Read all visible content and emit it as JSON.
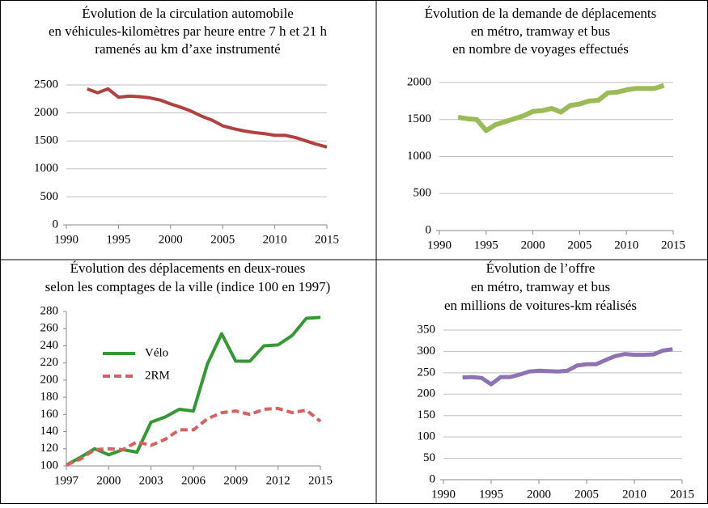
{
  "chart_data": [
    {
      "type": "line",
      "title": [
        "Évolution de la circulation automobile",
        "en véhicules-kilomètres par heure entre 7 h et 21 h",
        "ramenés au km d’axe instrumenté"
      ],
      "x": [
        1992,
        1993,
        1994,
        1995,
        1996,
        1997,
        1998,
        1999,
        2000,
        2001,
        2002,
        2003,
        2004,
        2005,
        2006,
        2007,
        2008,
        2009,
        2010,
        2011,
        2012,
        2013,
        2014,
        2015
      ],
      "series": [
        {
          "color": "#b0413e",
          "values": [
            2430,
            2360,
            2430,
            2280,
            2300,
            2290,
            2270,
            2230,
            2160,
            2100,
            2030,
            1940,
            1870,
            1770,
            1720,
            1680,
            1650,
            1630,
            1600,
            1600,
            1560,
            1500,
            1440,
            1390
          ]
        }
      ],
      "xlim": [
        1990,
        2015
      ],
      "xticks": [
        1990,
        1995,
        2000,
        2005,
        2010,
        2015
      ],
      "ylim": [
        0,
        2500
      ],
      "yticks": [
        0,
        500,
        1000,
        1500,
        2000,
        2500
      ],
      "grid": true
    },
    {
      "type": "line",
      "title": [
        "Évolution de la demande de déplacements",
        "en métro, tramway et bus",
        "en nombre de voyages effectués"
      ],
      "x": [
        1992,
        1993,
        1994,
        1995,
        1996,
        1997,
        1998,
        1999,
        2000,
        2001,
        2002,
        2003,
        2004,
        2005,
        2006,
        2007,
        2008,
        2009,
        2010,
        2011,
        2012,
        2013,
        2014
      ],
      "series": [
        {
          "color": "#9bbb59",
          "values": [
            1530,
            1510,
            1500,
            1350,
            1430,
            1470,
            1510,
            1550,
            1610,
            1620,
            1650,
            1600,
            1690,
            1710,
            1750,
            1760,
            1860,
            1870,
            1900,
            1920,
            1920,
            1920,
            1960
          ]
        }
      ],
      "xlim": [
        1990,
        2015
      ],
      "xticks": [
        1990,
        1995,
        2000,
        2005,
        2010,
        2015
      ],
      "ylim": [
        0,
        2000
      ],
      "yticks": [
        0,
        500,
        1000,
        1500,
        2000
      ],
      "grid": true
    },
    {
      "type": "line",
      "title": [
        "Évolution des déplacements en deux-roues",
        "selon les comptages de la ville (indice 100 en 1997)"
      ],
      "x": [
        1997,
        1998,
        1999,
        2000,
        2001,
        2002,
        2003,
        2004,
        2005,
        2006,
        2007,
        2008,
        2009,
        2010,
        2011,
        2012,
        2013,
        2014,
        2015
      ],
      "series": [
        {
          "name": "Vélo",
          "color": "#339933",
          "style": "solid",
          "values": [
            101,
            110,
            120,
            113,
            119,
            116,
            151,
            157,
            166,
            164,
            219,
            254,
            222,
            222,
            240,
            241,
            252,
            272,
            273
          ]
        },
        {
          "name": "2RM",
          "color": "#d9605f",
          "style": "dashed",
          "values": [
            101,
            108,
            119,
            120,
            119,
            128,
            124,
            131,
            142,
            142,
            155,
            162,
            164,
            160,
            166,
            167,
            162,
            165,
            152
          ]
        }
      ],
      "xlim": [
        1997,
        2015
      ],
      "xticks": [
        1997,
        2000,
        2003,
        2006,
        2009,
        2012,
        2015
      ],
      "ylim": [
        100,
        280
      ],
      "yticks": [
        100,
        120,
        140,
        160,
        180,
        200,
        220,
        240,
        260,
        280
      ],
      "grid": false,
      "legend": "upper-left"
    },
    {
      "type": "line",
      "title": [
        "Évolution de l’offre",
        "en métro, tramway et bus",
        "en millions de voitures-km réalisés"
      ],
      "x": [
        1992,
        1993,
        1994,
        1995,
        1996,
        1997,
        1998,
        1999,
        2000,
        2001,
        2002,
        2003,
        2004,
        2005,
        2006,
        2007,
        2008,
        2009,
        2010,
        2011,
        2012,
        2013,
        2014
      ],
      "series": [
        {
          "color": "#8e72b5",
          "values": [
            239,
            240,
            238,
            223,
            240,
            240,
            246,
            253,
            255,
            254,
            253,
            255,
            267,
            270,
            270,
            280,
            289,
            294,
            292,
            292,
            293,
            302,
            305
          ]
        }
      ],
      "xlim": [
        1990,
        2015
      ],
      "xticks": [
        1990,
        1995,
        2000,
        2005,
        2010,
        2015
      ],
      "ylim": [
        0,
        350
      ],
      "yticks": [
        0,
        50,
        100,
        150,
        200,
        250,
        300,
        350
      ],
      "grid": true
    }
  ]
}
